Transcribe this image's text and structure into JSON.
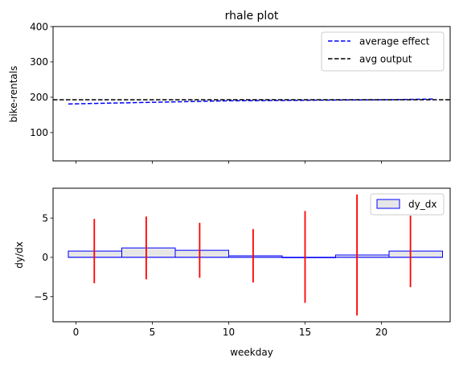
{
  "chart_data": [
    {
      "type": "line",
      "title": "rhale plot",
      "xlabel": "",
      "ylabel": "bike-rentals",
      "xlim": [
        -1.5,
        24.5
      ],
      "ylim": [
        20,
        400
      ],
      "yticks": [
        100,
        200,
        300,
        400
      ],
      "xticks": [
        0,
        5,
        10,
        15,
        20
      ],
      "show_x_tick_labels": false,
      "grid": false,
      "legend": "top-right",
      "series": [
        {
          "name": "average effect",
          "style": "dashed",
          "color": "#0000ff",
          "x": [
            -0.5,
            3,
            6.5,
            10,
            13.5,
            17,
            20.5,
            23.5
          ],
          "y": [
            181,
            184,
            187,
            190,
            191,
            192,
            193,
            195
          ]
        },
        {
          "name": "avg output",
          "style": "dashed",
          "color": "#000000",
          "x": [
            -1.5,
            24.5
          ],
          "y": [
            193,
            193
          ]
        }
      ]
    },
    {
      "type": "bar",
      "title": "",
      "xlabel": "weekday",
      "ylabel": "dy/dx",
      "xlim": [
        -1.5,
        24.5
      ],
      "ylim": [
        -8.2,
        8.8
      ],
      "yticks": [
        -5,
        0,
        5
      ],
      "xticks": [
        0,
        5,
        10,
        15,
        20
      ],
      "grid": false,
      "legend": "top-right",
      "series_name": "dy_dx",
      "bar_color": "#e6e6e6",
      "bar_edge_color": "#0000ff",
      "bars": [
        {
          "x0": -0.5,
          "x1": 3.0,
          "value": 0.8
        },
        {
          "x0": 3.0,
          "x1": 6.5,
          "value": 1.2
        },
        {
          "x0": 6.5,
          "x1": 10.0,
          "value": 0.9
        },
        {
          "x0": 10.0,
          "x1": 13.5,
          "value": 0.2
        },
        {
          "x0": 13.5,
          "x1": 17.0,
          "value": 0.0
        },
        {
          "x0": 17.0,
          "x1": 20.5,
          "value": 0.3
        },
        {
          "x0": 20.5,
          "x1": 24.0,
          "value": 0.8
        }
      ],
      "error_bar_color": "#ff0000",
      "error_bars": [
        {
          "x": 1.2,
          "low": -3.3,
          "high": 4.9
        },
        {
          "x": 4.6,
          "low": -2.8,
          "high": 5.2
        },
        {
          "x": 8.1,
          "low": -2.6,
          "high": 4.4
        },
        {
          "x": 11.6,
          "low": -3.2,
          "high": 3.6
        },
        {
          "x": 15.0,
          "low": -5.8,
          "high": 5.9
        },
        {
          "x": 18.4,
          "low": -7.4,
          "high": 8.0
        },
        {
          "x": 21.9,
          "low": -3.8,
          "high": 5.3
        }
      ]
    }
  ]
}
